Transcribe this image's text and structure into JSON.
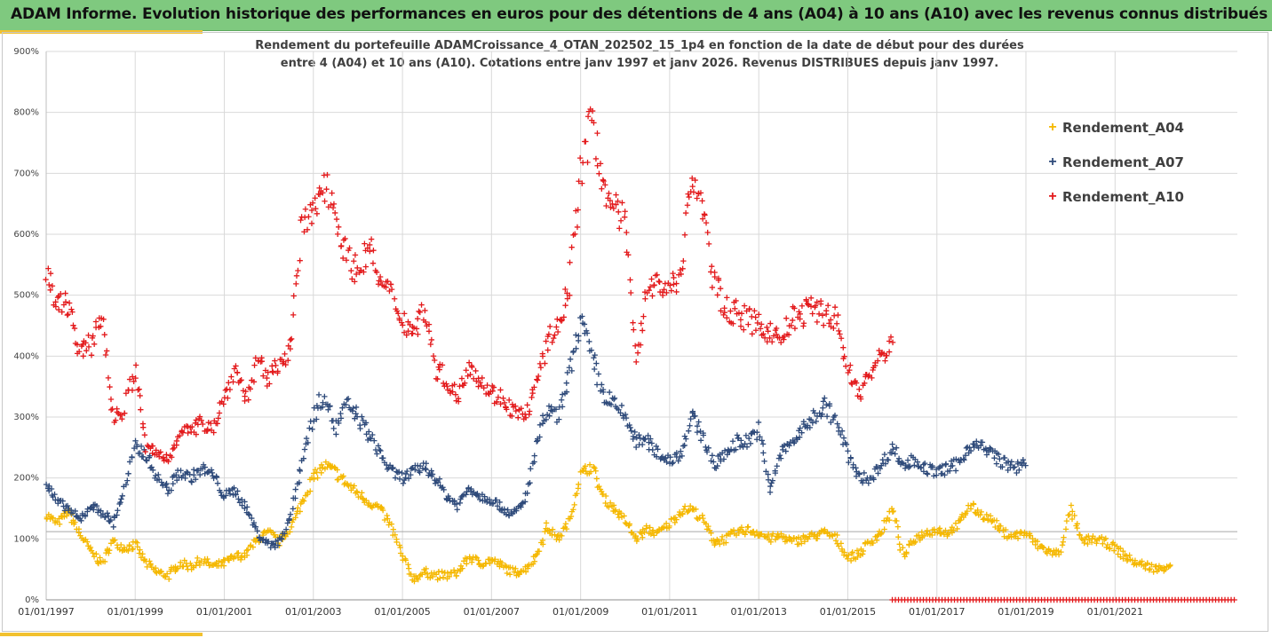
{
  "header": {
    "title": "ADAM Informe. Evolution historique des performances en euros pour des détentions de 4 ans (A04) à 10 ans (A10) avec les revenus connus distribués"
  },
  "chart_data": {
    "type": "scatter",
    "title_line1": "Rendement du portefeuille ADAMCroissance_4_OTAN_202502_15_1p4  en fonction de la date de début pour des durées",
    "title_line2": "entre 4 (A04) et 10 ans (A10). Cotations entre janv 1997 et janv 2026. Revenus DISTRIBUES depuis janv 1997.",
    "y_ticks": [
      "0%",
      "100%",
      "200%",
      "300%",
      "400%",
      "500%",
      "600%",
      "700%",
      "800%",
      "900%"
    ],
    "ylim": [
      0,
      900
    ],
    "x_ticks": [
      "01/01/1997",
      "01/01/1999",
      "01/01/2001",
      "01/01/2003",
      "01/01/2005",
      "01/01/2007",
      "01/01/2009",
      "01/01/2011",
      "01/01/2013",
      "01/01/2015",
      "01/01/2017",
      "01/01/2019",
      "01/01/2021"
    ],
    "xlim": [
      "1997-01-01",
      "2023-10-01"
    ],
    "legend_position": "right",
    "colors": {
      "A04": "#f5b800",
      "A07": "#2e4a7a",
      "A10": "#e31a1c",
      "grid": "#d9d9d9",
      "ref_line": "#a6a6a6"
    },
    "reference_line": 112,
    "series": [
      {
        "name": "Rendement_A04",
        "key": "A04",
        "points": [
          [
            "1997-01-01",
            140
          ],
          [
            "1997-04-01",
            125
          ],
          [
            "1997-07-01",
            145
          ],
          [
            "1997-10-01",
            110
          ],
          [
            "1998-01-01",
            80
          ],
          [
            "1998-04-01",
            60
          ],
          [
            "1998-07-01",
            95
          ],
          [
            "1998-10-01",
            85
          ],
          [
            "1999-01-01",
            90
          ],
          [
            "1999-04-01",
            60
          ],
          [
            "1999-07-01",
            45
          ],
          [
            "1999-10-01",
            40
          ],
          [
            "2000-01-01",
            60
          ],
          [
            "2000-04-01",
            55
          ],
          [
            "2000-07-01",
            65
          ],
          [
            "2000-10-01",
            55
          ],
          [
            "2001-01-01",
            60
          ],
          [
            "2001-04-01",
            70
          ],
          [
            "2001-07-01",
            75
          ],
          [
            "2001-10-01",
            100
          ],
          [
            "2002-01-01",
            110
          ],
          [
            "2002-04-01",
            95
          ],
          [
            "2002-07-01",
            120
          ],
          [
            "2002-10-01",
            160
          ],
          [
            "2003-01-01",
            200
          ],
          [
            "2003-04-01",
            220
          ],
          [
            "2003-07-01",
            210
          ],
          [
            "2003-10-01",
            190
          ],
          [
            "2004-01-01",
            175
          ],
          [
            "2004-04-01",
            160
          ],
          [
            "2004-07-01",
            150
          ],
          [
            "2004-10-01",
            120
          ],
          [
            "2005-01-01",
            70
          ],
          [
            "2005-04-01",
            35
          ],
          [
            "2005-07-01",
            45
          ],
          [
            "2005-10-01",
            40
          ],
          [
            "2006-01-01",
            40
          ],
          [
            "2006-04-01",
            45
          ],
          [
            "2006-07-01",
            70
          ],
          [
            "2006-10-01",
            60
          ],
          [
            "2007-01-01",
            65
          ],
          [
            "2007-04-01",
            55
          ],
          [
            "2007-07-01",
            45
          ],
          [
            "2007-10-01",
            50
          ],
          [
            "2008-01-01",
            70
          ],
          [
            "2008-04-01",
            120
          ],
          [
            "2008-07-01",
            100
          ],
          [
            "2008-10-01",
            130
          ],
          [
            "2009-01-01",
            205
          ],
          [
            "2009-04-01",
            220
          ],
          [
            "2009-07-01",
            170
          ],
          [
            "2009-10-01",
            150
          ],
          [
            "2010-01-01",
            130
          ],
          [
            "2010-04-01",
            100
          ],
          [
            "2010-07-01",
            115
          ],
          [
            "2010-10-01",
            110
          ],
          [
            "2011-01-01",
            125
          ],
          [
            "2011-04-01",
            145
          ],
          [
            "2011-07-01",
            150
          ],
          [
            "2011-10-01",
            130
          ],
          [
            "2012-01-01",
            95
          ],
          [
            "2012-04-01",
            100
          ],
          [
            "2012-07-01",
            110
          ],
          [
            "2012-10-01",
            115
          ],
          [
            "2013-01-01",
            110
          ],
          [
            "2013-04-01",
            100
          ],
          [
            "2013-07-01",
            105
          ],
          [
            "2013-10-01",
            95
          ],
          [
            "2014-01-01",
            100
          ],
          [
            "2014-04-01",
            105
          ],
          [
            "2014-07-01",
            110
          ],
          [
            "2014-10-01",
            100
          ],
          [
            "2015-01-01",
            70
          ],
          [
            "2015-04-01",
            75
          ],
          [
            "2015-07-01",
            95
          ],
          [
            "2015-10-01",
            110
          ],
          [
            "2016-01-01",
            150
          ],
          [
            "2016-04-01",
            70
          ],
          [
            "2016-07-01",
            100
          ],
          [
            "2016-10-01",
            110
          ],
          [
            "2017-01-01",
            115
          ],
          [
            "2017-04-01",
            110
          ],
          [
            "2017-07-01",
            125
          ],
          [
            "2017-10-01",
            155
          ],
          [
            "2018-01-01",
            140
          ],
          [
            "2018-04-01",
            130
          ],
          [
            "2018-07-01",
            110
          ],
          [
            "2018-10-01",
            105
          ],
          [
            "2019-01-01",
            110
          ],
          [
            "2019-04-01",
            90
          ],
          [
            "2019-07-01",
            80
          ],
          [
            "2019-10-01",
            75
          ],
          [
            "2020-01-01",
            150
          ],
          [
            "2020-04-01",
            95
          ],
          [
            "2020-07-01",
            100
          ],
          [
            "2020-10-01",
            95
          ],
          [
            "2021-01-01",
            85
          ],
          [
            "2021-04-01",
            70
          ],
          [
            "2021-07-01",
            60
          ],
          [
            "2021-10-01",
            55
          ],
          [
            "2022-01-01",
            50
          ],
          [
            "2022-04-01",
            60
          ]
        ]
      },
      {
        "name": "Rendement_A07",
        "key": "A07",
        "points": [
          [
            "1997-01-01",
            190
          ],
          [
            "1997-04-01",
            160
          ],
          [
            "1997-07-01",
            150
          ],
          [
            "1997-10-01",
            130
          ],
          [
            "1998-01-01",
            155
          ],
          [
            "1998-04-01",
            145
          ],
          [
            "1998-07-01",
            125
          ],
          [
            "1998-10-01",
            180
          ],
          [
            "1999-01-01",
            250
          ],
          [
            "1999-04-01",
            240
          ],
          [
            "1999-07-01",
            200
          ],
          [
            "1999-10-01",
            180
          ],
          [
            "2000-01-01",
            210
          ],
          [
            "2000-04-01",
            200
          ],
          [
            "2000-07-01",
            215
          ],
          [
            "2000-10-01",
            205
          ],
          [
            "2001-01-01",
            170
          ],
          [
            "2001-04-01",
            180
          ],
          [
            "2001-07-01",
            150
          ],
          [
            "2001-10-01",
            110
          ],
          [
            "2002-01-01",
            90
          ],
          [
            "2002-04-01",
            95
          ],
          [
            "2002-07-01",
            140
          ],
          [
            "2002-10-01",
            230
          ],
          [
            "2003-01-01",
            300
          ],
          [
            "2003-04-01",
            340
          ],
          [
            "2003-07-01",
            280
          ],
          [
            "2003-10-01",
            320
          ],
          [
            "2004-01-01",
            300
          ],
          [
            "2004-04-01",
            270
          ],
          [
            "2004-07-01",
            240
          ],
          [
            "2004-10-01",
            210
          ],
          [
            "2005-01-01",
            200
          ],
          [
            "2005-04-01",
            210
          ],
          [
            "2005-07-01",
            220
          ],
          [
            "2005-10-01",
            200
          ],
          [
            "2006-01-01",
            170
          ],
          [
            "2006-04-01",
            155
          ],
          [
            "2006-07-01",
            185
          ],
          [
            "2006-10-01",
            170
          ],
          [
            "2007-01-01",
            165
          ],
          [
            "2007-04-01",
            150
          ],
          [
            "2007-07-01",
            140
          ],
          [
            "2007-10-01",
            160
          ],
          [
            "2008-01-01",
            250
          ],
          [
            "2008-04-01",
            310
          ],
          [
            "2008-07-01",
            300
          ],
          [
            "2008-10-01",
            370
          ],
          [
            "2009-01-01",
            460
          ],
          [
            "2009-04-01",
            400
          ],
          [
            "2009-07-01",
            340
          ],
          [
            "2009-10-01",
            320
          ],
          [
            "2010-01-01",
            300
          ],
          [
            "2010-04-01",
            260
          ],
          [
            "2010-07-01",
            260
          ],
          [
            "2010-10-01",
            240
          ],
          [
            "2011-01-01",
            230
          ],
          [
            "2011-04-01",
            240
          ],
          [
            "2011-07-01",
            300
          ],
          [
            "2011-10-01",
            270
          ],
          [
            "2012-01-01",
            220
          ],
          [
            "2012-04-01",
            240
          ],
          [
            "2012-07-01",
            260
          ],
          [
            "2012-10-01",
            260
          ],
          [
            "2013-01-01",
            280
          ],
          [
            "2013-04-01",
            180
          ],
          [
            "2013-07-01",
            240
          ],
          [
            "2013-10-01",
            260
          ],
          [
            "2014-01-01",
            280
          ],
          [
            "2014-04-01",
            300
          ],
          [
            "2014-07-01",
            320
          ],
          [
            "2014-10-01",
            290
          ],
          [
            "2015-01-01",
            240
          ],
          [
            "2015-04-01",
            200
          ],
          [
            "2015-07-01",
            200
          ],
          [
            "2015-10-01",
            220
          ],
          [
            "2016-01-01",
            250
          ],
          [
            "2016-04-01",
            220
          ],
          [
            "2016-07-01",
            230
          ],
          [
            "2016-10-01",
            215
          ],
          [
            "2017-01-01",
            210
          ],
          [
            "2017-04-01",
            215
          ],
          [
            "2017-07-01",
            225
          ],
          [
            "2017-10-01",
            255
          ],
          [
            "2018-01-01",
            250
          ],
          [
            "2018-04-01",
            240
          ],
          [
            "2018-07-01",
            225
          ],
          [
            "2018-10-01",
            215
          ],
          [
            "2019-01-01",
            230
          ]
        ]
      },
      {
        "name": "Rendement_A10",
        "key": "A10",
        "points": [
          [
            "1997-01-01",
            530
          ],
          [
            "1997-04-01",
            480
          ],
          [
            "1997-07-01",
            490
          ],
          [
            "1997-10-01",
            400
          ],
          [
            "1998-01-01",
            420
          ],
          [
            "1998-04-01",
            470
          ],
          [
            "1998-07-01",
            300
          ],
          [
            "1998-10-01",
            310
          ],
          [
            "1999-01-01",
            380
          ],
          [
            "1999-04-01",
            250
          ],
          [
            "1999-07-01",
            240
          ],
          [
            "1999-10-01",
            230
          ],
          [
            "2000-01-01",
            280
          ],
          [
            "2000-04-01",
            275
          ],
          [
            "2000-07-01",
            290
          ],
          [
            "2000-10-01",
            285
          ],
          [
            "2001-01-01",
            330
          ],
          [
            "2001-04-01",
            380
          ],
          [
            "2001-07-01",
            330
          ],
          [
            "2001-10-01",
            390
          ],
          [
            "2002-01-01",
            360
          ],
          [
            "2002-04-01",
            395
          ],
          [
            "2002-07-01",
            410
          ],
          [
            "2002-10-01",
            620
          ],
          [
            "2003-01-01",
            630
          ],
          [
            "2003-04-01",
            690
          ],
          [
            "2003-07-01",
            640
          ],
          [
            "2003-10-01",
            560
          ],
          [
            "2004-01-01",
            540
          ],
          [
            "2004-04-01",
            580
          ],
          [
            "2004-07-01",
            520
          ],
          [
            "2004-10-01",
            500
          ],
          [
            "2005-01-01",
            460
          ],
          [
            "2005-04-01",
            440
          ],
          [
            "2005-07-01",
            480
          ],
          [
            "2005-10-01",
            380
          ],
          [
            "2006-01-01",
            360
          ],
          [
            "2006-04-01",
            330
          ],
          [
            "2006-07-01",
            390
          ],
          [
            "2006-10-01",
            360
          ],
          [
            "2007-01-01",
            340
          ],
          [
            "2007-04-01",
            330
          ],
          [
            "2007-07-01",
            310
          ],
          [
            "2007-10-01",
            300
          ],
          [
            "2008-01-01",
            350
          ],
          [
            "2008-04-01",
            420
          ],
          [
            "2008-07-01",
            450
          ],
          [
            "2008-10-01",
            520
          ],
          [
            "2009-01-01",
            700
          ],
          [
            "2009-04-01",
            790
          ],
          [
            "2009-07-01",
            690
          ],
          [
            "2009-10-01",
            640
          ],
          [
            "2010-01-01",
            620
          ],
          [
            "2010-04-01",
            400
          ],
          [
            "2010-07-01",
            510
          ],
          [
            "2010-10-01",
            520
          ],
          [
            "2011-01-01",
            510
          ],
          [
            "2011-04-01",
            540
          ],
          [
            "2011-07-01",
            700
          ],
          [
            "2011-10-01",
            640
          ],
          [
            "2012-01-01",
            520
          ],
          [
            "2012-04-01",
            480
          ],
          [
            "2012-07-01",
            470
          ],
          [
            "2012-10-01",
            460
          ],
          [
            "2013-01-01",
            450
          ],
          [
            "2013-04-01",
            440
          ],
          [
            "2013-07-01",
            430
          ],
          [
            "2013-10-01",
            460
          ],
          [
            "2014-01-01",
            470
          ],
          [
            "2014-04-01",
            480
          ],
          [
            "2014-07-01",
            470
          ],
          [
            "2014-10-01",
            460
          ],
          [
            "2015-01-01",
            380
          ],
          [
            "2015-04-01",
            340
          ],
          [
            "2015-07-01",
            370
          ],
          [
            "2015-10-01",
            400
          ],
          [
            "2016-01-01",
            420
          ]
        ]
      }
    ],
    "zero_band": {
      "key": "A10",
      "from": "2016-01-01",
      "to": "2023-10-01",
      "value": 0
    }
  }
}
